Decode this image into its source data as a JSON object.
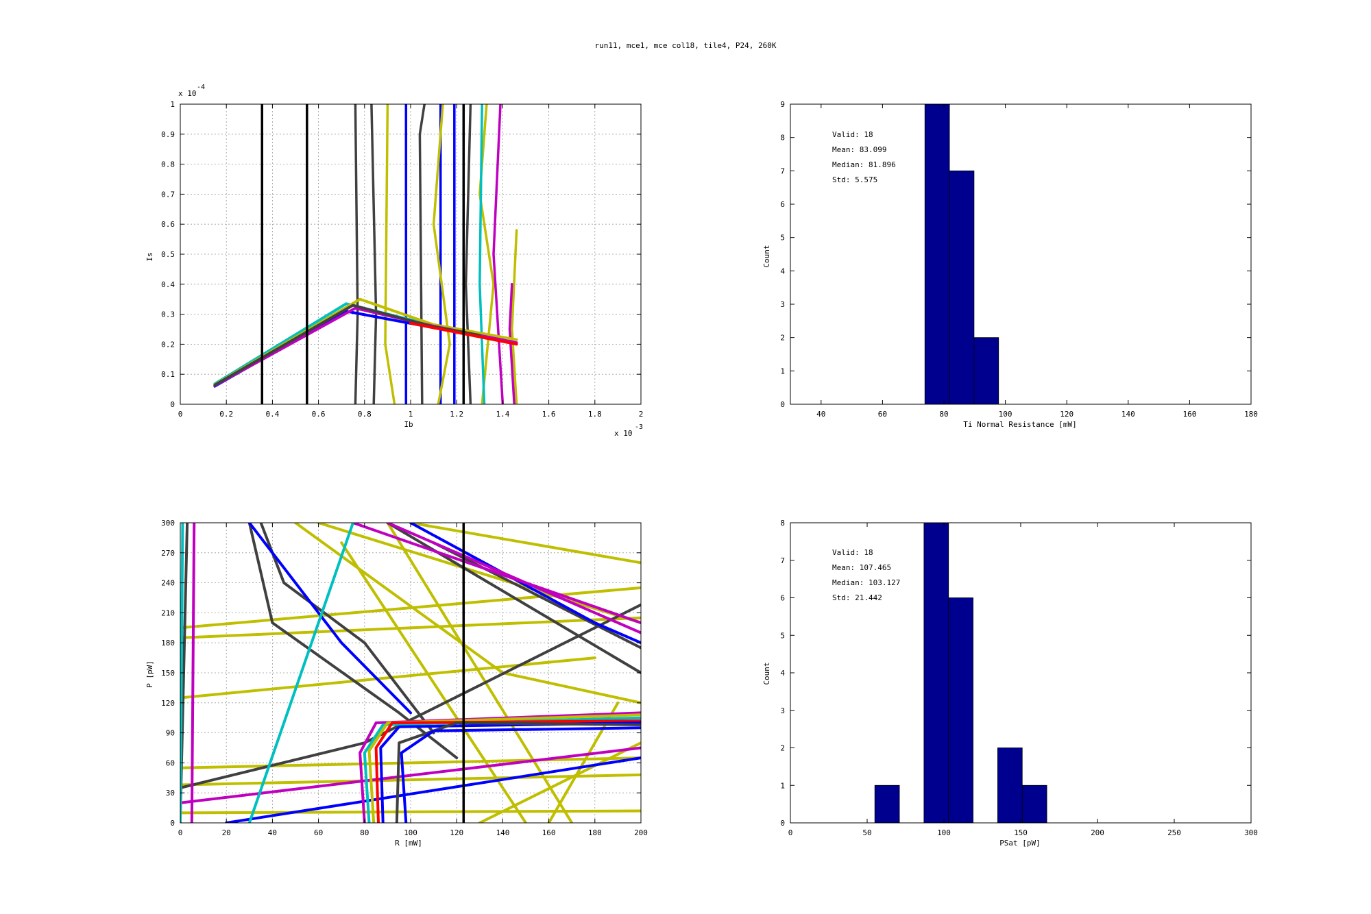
{
  "figure": {
    "title": "run11, mce1, mce col18, tile4, P24, 260K"
  },
  "chart_data": [
    {
      "id": "ib_is",
      "type": "line",
      "xlabel": "Ib",
      "ylabel": "Is",
      "xlim": [
        0,
        0.002
      ],
      "ylim": [
        0,
        0.0001
      ],
      "x_ticks": [
        0,
        0.2,
        0.4,
        0.6,
        0.8,
        1,
        1.2,
        1.4,
        1.6,
        1.8,
        2
      ],
      "y_ticks": [
        0,
        0.1,
        0.2,
        0.3,
        0.4,
        0.5,
        0.6,
        0.7,
        0.8,
        0.9,
        1
      ],
      "x_exponent": "x 10",
      "x_exponent_power": "-3",
      "y_exponent": "x 10",
      "y_exponent_power": "-4",
      "grid": true,
      "vertical_lines": [
        0.000355,
        0.00055,
        0.00123
      ],
      "series": [
        {
          "color": "#0000ff",
          "points": [
            [
              0.00015,
              6e-06
            ],
            [
              0.00072,
              3.1e-05
            ],
            [
              0.0011,
              2.55e-05
            ],
            [
              0.0014,
              2.2e-05
            ]
          ]
        },
        {
          "color": "#00bfbf",
          "points": [
            [
              0.00015,
              6.8e-06
            ],
            [
              0.00072,
              3.35e-05
            ],
            [
              0.0011,
              2.62e-05
            ],
            [
              0.00135,
              2.3e-05
            ]
          ]
        },
        {
          "color": "#bfbf00",
          "points": [
            [
              0.00015,
              6.5e-06
            ],
            [
              0.00078,
              3.5e-05
            ],
            [
              0.0011,
              2.65e-05
            ],
            [
              0.00146,
              2.15e-05
            ]
          ]
        },
        {
          "color": "#bf00bf",
          "points": [
            [
              0.00015,
              6.2e-06
            ],
            [
              0.00076,
              3.2e-05
            ],
            [
              0.0011,
              2.6e-05
            ],
            [
              0.00146,
              2.05e-05
            ]
          ]
        },
        {
          "color": "#404040",
          "points": [
            [
              0.00015,
              6.4e-06
            ],
            [
              0.00075,
              3.3e-05
            ],
            [
              0.0011,
              2.58e-05
            ],
            [
              0.0013,
              2.3e-05
            ]
          ]
        },
        {
          "color": "#ff0000",
          "points": [
            [
              0.001,
              2.7e-05
            ],
            [
              0.00146,
              2e-05
            ]
          ]
        }
      ],
      "noise_series": [
        {
          "color": "#0000ff",
          "points": [
            [
              0.00098,
              0.0001
            ],
            [
              0.00098,
              0.0
            ]
          ]
        },
        {
          "color": "#0000ff",
          "points": [
            [
              0.00113,
              0.0001
            ],
            [
              0.00113,
              0.0
            ]
          ]
        },
        {
          "color": "#0000ff",
          "points": [
            [
              0.00119,
              0.0001
            ],
            [
              0.00119,
              0.0
            ]
          ]
        },
        {
          "color": "#404040",
          "points": [
            [
              0.00076,
              0.0001
            ],
            [
              0.00077,
              3e-05
            ],
            [
              0.00076,
              0.0
            ]
          ]
        },
        {
          "color": "#404040",
          "points": [
            [
              0.00083,
              0.0001
            ],
            [
              0.00085,
              3e-05
            ],
            [
              0.00084,
              0.0
            ]
          ]
        },
        {
          "color": "#404040",
          "points": [
            [
              0.00106,
              0.0001
            ],
            [
              0.00104,
              9e-05
            ],
            [
              0.00105,
              0.0
            ]
          ]
        },
        {
          "color": "#404040",
          "points": [
            [
              0.00126,
              0.0001
            ],
            [
              0.00124,
              4e-05
            ],
            [
              0.00126,
              0.0
            ]
          ]
        },
        {
          "color": "#bfbf00",
          "points": [
            [
              0.0009,
              0.0001
            ],
            [
              0.00089,
              2e-05
            ],
            [
              0.00093,
              0.0
            ]
          ]
        },
        {
          "color": "#bfbf00",
          "points": [
            [
              0.00114,
              0.0001
            ],
            [
              0.0011,
              6e-05
            ],
            [
              0.00117,
              2e-05
            ],
            [
              0.00112,
              0.0
            ]
          ]
        },
        {
          "color": "#bfbf00",
          "points": [
            [
              0.00133,
              0.0001
            ],
            [
              0.0013,
              7e-05
            ],
            [
              0.00136,
              4e-05
            ],
            [
              0.00131,
              0.0
            ]
          ]
        },
        {
          "color": "#bfbf00",
          "points": [
            [
              0.00146,
              5.8e-05
            ],
            [
              0.00144,
              2.5e-05
            ],
            [
              0.00146,
              0.0
            ]
          ]
        },
        {
          "color": "#bf00bf",
          "points": [
            [
              0.00139,
              0.0001
            ],
            [
              0.00136,
              5e-05
            ],
            [
              0.0014,
              0.0
            ]
          ]
        },
        {
          "color": "#bf00bf",
          "points": [
            [
              0.00144,
              4e-05
            ],
            [
              0.00143,
              2.5e-05
            ],
            [
              0.00145,
              0.0
            ]
          ]
        },
        {
          "color": "#00bfbf",
          "points": [
            [
              0.00131,
              0.0001
            ],
            [
              0.0013,
              4e-05
            ],
            [
              0.00132,
              0.0
            ]
          ]
        }
      ]
    },
    {
      "id": "r_hist",
      "type": "bar",
      "xlabel": "Ti Normal Resistance [mW]",
      "ylabel": "Count",
      "xlim": [
        30,
        180
      ],
      "ylim": [
        0,
        9
      ],
      "x_ticks": [
        40,
        60,
        80,
        100,
        120,
        140,
        160,
        180
      ],
      "y_ticks": [
        0,
        1,
        2,
        3,
        4,
        5,
        6,
        7,
        8,
        9
      ],
      "bins": [
        [
          73.8,
          81.8,
          9
        ],
        [
          81.8,
          89.8,
          7
        ],
        [
          89.8,
          97.8,
          2
        ]
      ],
      "bar_color": "#00008f",
      "stats": [
        "Valid: 18",
        "Mean: 83.099",
        "Median: 81.896",
        "Std: 5.575"
      ]
    },
    {
      "id": "r_p",
      "type": "line",
      "xlabel": "R [mW]",
      "ylabel": "P [pW]",
      "xlim": [
        0,
        200
      ],
      "ylim": [
        0,
        300
      ],
      "x_ticks": [
        0,
        20,
        40,
        60,
        80,
        100,
        120,
        140,
        160,
        180,
        200
      ],
      "y_ticks": [
        0,
        30,
        60,
        90,
        120,
        150,
        180,
        210,
        240,
        270,
        300
      ],
      "grid": true,
      "vertical_lines": [
        123
      ],
      "series": [
        {
          "color": "#bfbf00",
          "points": [
            [
              0,
              195
            ],
            [
              200,
              235
            ]
          ]
        },
        {
          "color": "#bfbf00",
          "points": [
            [
              0,
              185
            ],
            [
              200,
              205
            ]
          ]
        },
        {
          "color": "#bfbf00",
          "points": [
            [
              0,
              125
            ],
            [
              180,
              165
            ]
          ]
        },
        {
          "color": "#bfbf00",
          "points": [
            [
              0,
              55
            ],
            [
              200,
              65
            ]
          ]
        },
        {
          "color": "#bfbf00",
          "points": [
            [
              0,
              38
            ],
            [
              200,
              48
            ]
          ]
        },
        {
          "color": "#bfbf00",
          "points": [
            [
              0,
              10
            ],
            [
              200,
              12
            ]
          ]
        },
        {
          "color": "#bfbf00",
          "points": [
            [
              60,
              300
            ],
            [
              200,
              200
            ]
          ]
        },
        {
          "color": "#bfbf00",
          "points": [
            [
              100,
              300
            ],
            [
              200,
              260
            ]
          ]
        },
        {
          "color": "#bfbf00",
          "points": [
            [
              130,
              0
            ],
            [
              200,
              80
            ]
          ]
        },
        {
          "color": "#bfbf00",
          "points": [
            [
              160,
              0
            ],
            [
              190,
              120
            ]
          ]
        },
        {
          "color": "#bfbf00",
          "points": [
            [
              50,
              300
            ],
            [
              140,
              150
            ],
            [
              200,
              120
            ]
          ]
        },
        {
          "color": "#bfbf00",
          "points": [
            [
              70,
              280
            ],
            [
              150,
              0
            ]
          ]
        },
        {
          "color": "#bfbf00",
          "points": [
            [
              90,
              300
            ],
            [
              130,
              150
            ],
            [
              170,
              0
            ]
          ]
        },
        {
          "color": "#404040",
          "points": [
            [
              0,
              35
            ],
            [
              80,
              80
            ],
            [
              200,
              218
            ]
          ]
        },
        {
          "color": "#404040",
          "points": [
            [
              30,
              300
            ],
            [
              40,
              200
            ],
            [
              95,
              110
            ],
            [
              120,
              65
            ]
          ]
        },
        {
          "color": "#404040",
          "points": [
            [
              35,
              300
            ],
            [
              45,
              240
            ],
            [
              80,
              180
            ],
            [
              110,
              90
            ]
          ]
        },
        {
          "color": "#404040",
          "points": [
            [
              90,
              300
            ],
            [
              200,
              150
            ]
          ]
        },
        {
          "color": "#404040",
          "points": [
            [
              110,
              280
            ],
            [
              200,
              175
            ]
          ]
        },
        {
          "color": "#404040",
          "points": [
            [
              0,
              5
            ],
            [
              3,
              300
            ]
          ]
        },
        {
          "color": "#0000ff",
          "points": [
            [
              30,
              300
            ],
            [
              70,
              180
            ],
            [
              100,
              110
            ]
          ]
        },
        {
          "color": "#0000ff",
          "points": [
            [
              100,
              300
            ],
            [
              180,
              200
            ],
            [
              200,
              180
            ]
          ]
        },
        {
          "color": "#0000ff",
          "points": [
            [
              20,
              0
            ],
            [
              200,
              65
            ]
          ]
        },
        {
          "color": "#bf00bf",
          "points": [
            [
              0,
              20
            ],
            [
              200,
              75
            ]
          ]
        },
        {
          "color": "#bf00bf",
          "points": [
            [
              75,
              300
            ],
            [
              200,
              200
            ]
          ]
        },
        {
          "color": "#bf00bf",
          "points": [
            [
              90,
              300
            ],
            [
              200,
              190
            ]
          ]
        },
        {
          "color": "#bf00bf",
          "points": [
            [
              5,
              0
            ],
            [
              6,
              300
            ]
          ]
        },
        {
          "color": "#00bfbf",
          "points": [
            [
              30,
              0
            ],
            [
              75,
              300
            ]
          ]
        },
        {
          "color": "#00bfbf",
          "points": [
            [
              0,
              0
            ],
            [
              1,
              300
            ]
          ]
        },
        {
          "color": "#bf00bf",
          "points": [
            [
              80,
              0
            ],
            [
              78,
              70
            ],
            [
              85,
              100
            ],
            [
              200,
              110
            ]
          ]
        },
        {
          "color": "#00bfbf",
          "points": [
            [
              82,
              0
            ],
            [
              80,
              70
            ],
            [
              88,
              98
            ],
            [
              200,
              105
            ]
          ]
        },
        {
          "color": "#bfbf00",
          "points": [
            [
              84,
              0
            ],
            [
              82,
              72
            ],
            [
              90,
              100
            ],
            [
              200,
              108
            ]
          ]
        },
        {
          "color": "#ff0000",
          "points": [
            [
              86,
              0
            ],
            [
              85,
              75
            ],
            [
              92,
              100
            ],
            [
              200,
              102
            ]
          ]
        },
        {
          "color": "#0000ff",
          "points": [
            [
              88,
              0
            ],
            [
              87,
              75
            ],
            [
              95,
              96
            ],
            [
              200,
              100
            ]
          ]
        },
        {
          "color": "#404040",
          "points": [
            [
              94,
              0
            ],
            [
              95,
              80
            ],
            [
              120,
              100
            ],
            [
              200,
              98
            ]
          ]
        },
        {
          "color": "#0000ff",
          "points": [
            [
              98,
              0
            ],
            [
              96,
              70
            ],
            [
              110,
              92
            ],
            [
              200,
              95
            ]
          ]
        }
      ]
    },
    {
      "id": "psat_hist",
      "type": "bar",
      "xlabel": "PSat [pW]",
      "ylabel": "Count",
      "xlim": [
        0,
        300
      ],
      "ylim": [
        0,
        8
      ],
      "x_ticks": [
        0,
        50,
        100,
        150,
        200,
        250,
        300
      ],
      "y_ticks": [
        0,
        1,
        2,
        3,
        4,
        5,
        6,
        7,
        8
      ],
      "bins": [
        [
          55,
          71,
          1
        ],
        [
          87,
          103,
          8
        ],
        [
          103,
          119,
          6
        ],
        [
          135,
          151,
          2
        ],
        [
          151,
          167,
          1
        ]
      ],
      "bar_color": "#00008f",
      "stats": [
        "Valid: 18",
        "Mean: 107.465",
        "Median: 103.127",
        "Std: 21.442"
      ]
    }
  ]
}
